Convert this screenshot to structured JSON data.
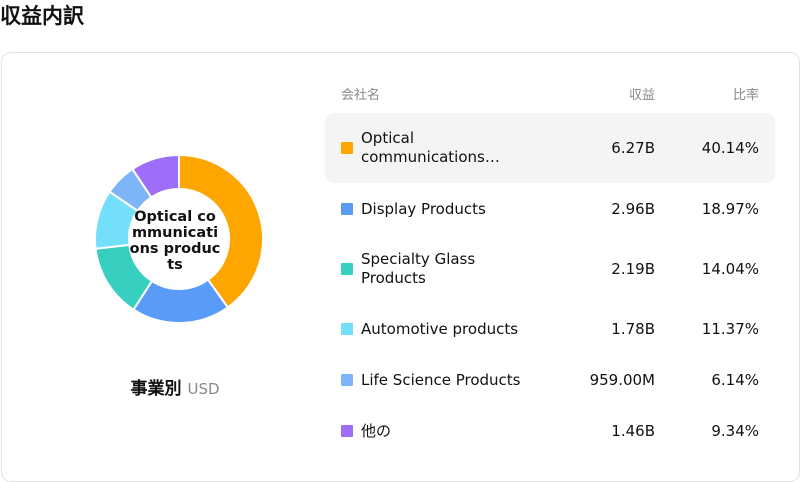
{
  "page_title": "収益内訳",
  "table_header": {
    "name": "会社名",
    "revenue": "収益",
    "ratio": "比率"
  },
  "center_label": "Optical communications products",
  "caption": {
    "main": "事業別",
    "unit": "USD"
  },
  "rows": [
    {
      "name": "Optical communications…",
      "revenue": "6.27B",
      "ratio": "40.14%",
      "color": "#FFA500"
    },
    {
      "name": "Display Products",
      "revenue": "2.96B",
      "ratio": "18.97%",
      "color": "#5B9BF8"
    },
    {
      "name": "Specialty Glass Products",
      "revenue": "2.19B",
      "ratio": "14.04%",
      "color": "#36CFC0"
    },
    {
      "name": "Automotive products",
      "revenue": "1.78B",
      "ratio": "11.37%",
      "color": "#73DFFA"
    },
    {
      "name": "Life Science Products",
      "revenue": "959.00M",
      "ratio": "6.14%",
      "color": "#7DB5F8"
    },
    {
      "name": "他の",
      "revenue": "1.46B",
      "ratio": "9.34%",
      "color": "#9E6EF8"
    }
  ],
  "chart_data": {
    "type": "pie",
    "style": "donut",
    "categories": [
      "Optical communications products",
      "Display Products",
      "Specialty Glass Products",
      "Automotive products",
      "Life Science Products",
      "他の"
    ],
    "values": [
      40.14,
      18.97,
      14.04,
      11.37,
      6.14,
      9.34
    ],
    "unit": "%",
    "colors": [
      "#FFA500",
      "#5B9BF8",
      "#36CFC0",
      "#73DFFA",
      "#7DB5F8",
      "#9E6EF8"
    ],
    "highlighted": "Optical communications products"
  }
}
